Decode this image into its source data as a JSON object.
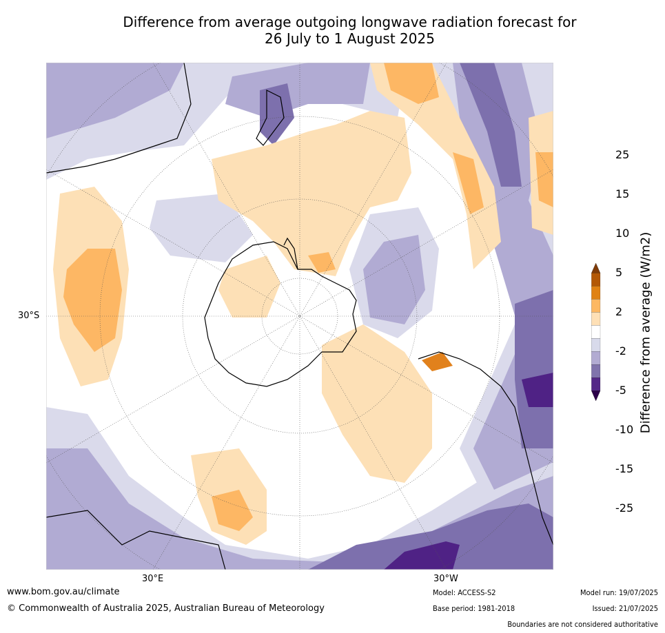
{
  "title": {
    "line1": "Difference from average outgoing longwave radiation forecast for",
    "line2": "26 July to 1 August 2025"
  },
  "map": {
    "projection": "south-polar-stereographic",
    "lat_label": "30°S",
    "lon_labels": {
      "east": "30°E",
      "west": "30°W"
    },
    "colors": {
      "ocean": "#ffffff",
      "lvl_m25": "#4f2285",
      "lvl_m15": "#7d70ad",
      "lvl_m10": "#b1abd3",
      "lvl_m5": "#dadaeb",
      "lvl_p2": "#fde0b6",
      "lvl_p5": "#fdb764",
      "lvl_p10": "#e1811c",
      "coast": "#000000"
    }
  },
  "colorbar": {
    "label": "Difference from average (W/m2)",
    "ticks": [
      "25",
      "15",
      "10",
      "5",
      "2",
      "-2",
      "-5",
      "-10",
      "-15",
      "-25"
    ],
    "colors": [
      "#7f3b08",
      "#b35806",
      "#e08214",
      "#fdb863",
      "#fee0b6",
      "#ffffff",
      "#d8daeb",
      "#b2abd2",
      "#8073ac",
      "#542788",
      "#2d004b"
    ]
  },
  "footer": {
    "website": "www.bom.gov.au/climate",
    "copyright": "© Commonwealth of Australia 2025, Australian Bureau of Meteorology",
    "model": "Model: ACCESS-S2",
    "base_period": "Base period: 1981-2018",
    "model_run": "Model run: 19/07/2025",
    "issued": "Issued: 21/07/2025",
    "disclaimer": "Boundaries are not considered authoritative"
  }
}
